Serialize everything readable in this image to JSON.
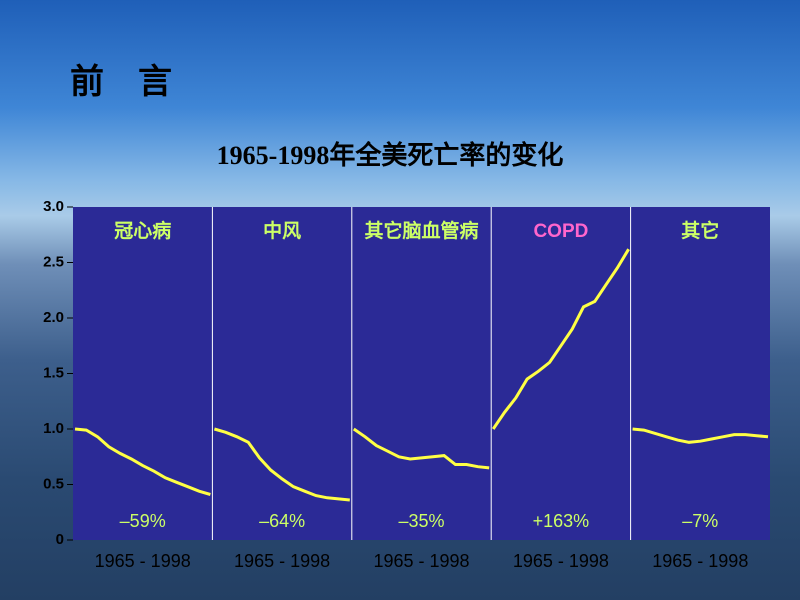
{
  "heading": "前　言",
  "chart_data": {
    "type": "line",
    "title": "1965-1998年全美死亡率的变化",
    "ylim": [
      0,
      3
    ],
    "yticks": [
      0,
      0.5,
      {
        "value": 1,
        "label": "1.0"
      },
      1.5,
      {
        "value": 2,
        "label": "2.0"
      },
      2.5,
      {
        "value": 3,
        "label": "3.0"
      }
    ],
    "series": [
      {
        "name": "冠心病",
        "name_color": "#ccff66",
        "color": "#ffff44",
        "annotation": "–59%",
        "xlabel": "1965 - 1998",
        "values": [
          1.0,
          0.99,
          0.93,
          0.84,
          0.78,
          0.73,
          0.67,
          0.62,
          0.56,
          0.52,
          0.48,
          0.44,
          0.41
        ]
      },
      {
        "name": "中风",
        "name_color": "#ccff66",
        "color": "#ffff44",
        "annotation": "–64%",
        "xlabel": "1965 - 1998",
        "values": [
          1.0,
          0.97,
          0.93,
          0.88,
          0.74,
          0.63,
          0.55,
          0.48,
          0.44,
          0.4,
          0.38,
          0.37,
          0.36
        ]
      },
      {
        "name": "其它脑血管病",
        "name_color": "#ccff66",
        "color": "#ffff44",
        "annotation": "–35%",
        "xlabel": "1965 - 1998",
        "values": [
          1.0,
          0.93,
          0.85,
          0.8,
          0.75,
          0.73,
          0.74,
          0.75,
          0.76,
          0.68,
          0.68,
          0.66,
          0.65
        ]
      },
      {
        "name": "COPD",
        "name_color": "#ff66cc",
        "color": "#ffff44",
        "annotation": "+163%",
        "xlabel": "1965 - 1998",
        "values": [
          1.0,
          1.15,
          1.28,
          1.45,
          1.52,
          1.6,
          1.75,
          1.9,
          2.1,
          2.15,
          2.3,
          2.45,
          2.62
        ]
      },
      {
        "name": "其它",
        "name_color": "#ccff66",
        "color": "#ffff44",
        "annotation": "–7%",
        "xlabel": "1965 - 1998",
        "values": [
          1.0,
          0.99,
          0.96,
          0.93,
          0.9,
          0.88,
          0.89,
          0.91,
          0.93,
          0.95,
          0.95,
          0.94,
          0.93
        ]
      }
    ]
  }
}
